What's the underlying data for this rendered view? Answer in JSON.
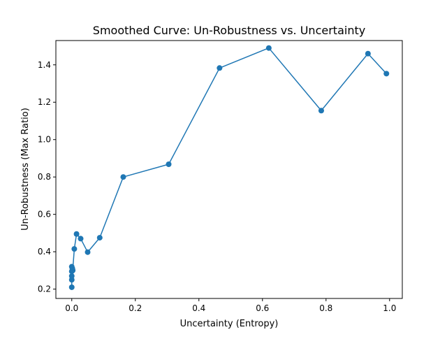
{
  "chart_data": {
    "type": "line",
    "title": "Smoothed Curve: Un-Robustness vs. Uncertainty",
    "xlabel": "Uncertainty (Entropy)",
    "ylabel": "Un-Robustness (Max Ratio)",
    "xlim": [
      -0.05,
      1.04
    ],
    "ylim": [
      0.15,
      1.53
    ],
    "x_ticks": [
      0.0,
      0.2,
      0.4,
      0.6,
      0.8,
      1.0
    ],
    "x_tick_labels": [
      "0.0",
      "0.2",
      "0.4",
      "0.6",
      "0.8",
      "1.0"
    ],
    "y_ticks": [
      0.2,
      0.4,
      0.6,
      0.8,
      1.0,
      1.2,
      1.4
    ],
    "y_tick_labels": [
      "0.2",
      "0.4",
      "0.6",
      "0.8",
      "1.0",
      "1.2",
      "1.4"
    ],
    "grid": false,
    "legend": "none",
    "series": [
      {
        "color": "#1f77b4",
        "marker": "circle",
        "points": [
          {
            "x": 0.0,
            "y": 0.21
          },
          {
            "x": 0.0,
            "y": 0.25
          },
          {
            "x": 0.0,
            "y": 0.27
          },
          {
            "x": 0.0,
            "y": 0.295
          },
          {
            "x": 0.0,
            "y": 0.32
          },
          {
            "x": 0.002,
            "y": 0.31
          },
          {
            "x": 0.003,
            "y": 0.3
          },
          {
            "x": 0.008,
            "y": 0.415
          },
          {
            "x": 0.015,
            "y": 0.495
          },
          {
            "x": 0.028,
            "y": 0.47
          },
          {
            "x": 0.05,
            "y": 0.398
          },
          {
            "x": 0.088,
            "y": 0.475
          },
          {
            "x": 0.162,
            "y": 0.8
          },
          {
            "x": 0.305,
            "y": 0.868
          },
          {
            "x": 0.465,
            "y": 1.383
          },
          {
            "x": 0.62,
            "y": 1.49
          },
          {
            "x": 0.785,
            "y": 1.155
          },
          {
            "x": 0.932,
            "y": 1.46
          },
          {
            "x": 0.99,
            "y": 1.353
          }
        ]
      }
    ]
  }
}
